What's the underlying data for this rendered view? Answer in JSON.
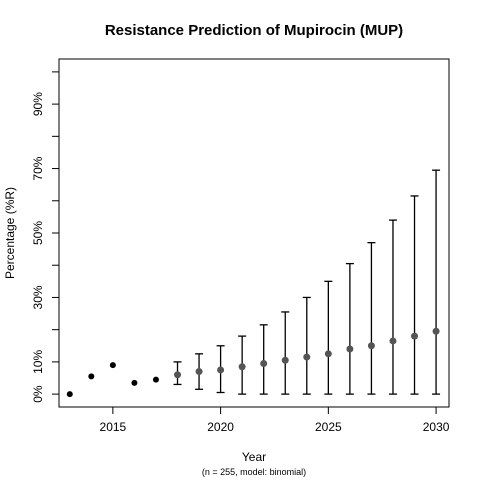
{
  "chart_data": {
    "type": "scatter",
    "title": "Resistance Prediction of Mupirocin (MUP)",
    "xlabel": "Year",
    "ylabel": "Percentage (%R)",
    "subtitle": "(n = 255, model: binomial)",
    "xlim": [
      2012.5,
      2030.6
    ],
    "ylim": [
      -4,
      104
    ],
    "x_ticks": [
      2015,
      2020,
      2025,
      2030
    ],
    "x_tick_labels": [
      "2015",
      "2020",
      "2025",
      "2030"
    ],
    "y_ticks": [
      0,
      10,
      30,
      50,
      70,
      90
    ],
    "y_tick_labels": [
      "0%",
      "10%",
      "30%",
      "50%",
      "70%",
      "90%"
    ],
    "y_minor_ticks": [
      20,
      40,
      60,
      80,
      100
    ],
    "grid": false,
    "series": [
      {
        "role": "observed",
        "color": "#000000",
        "points": [
          {
            "x": 2013,
            "y": 0
          },
          {
            "x": 2014,
            "y": 5.5
          },
          {
            "x": 2015,
            "y": 9
          },
          {
            "x": 2016,
            "y": 3.5
          },
          {
            "x": 2017,
            "y": 4.5
          }
        ]
      },
      {
        "role": "predicted",
        "color": "#555555",
        "points": [
          {
            "x": 2018,
            "y": 6,
            "lower": 3,
            "upper": 10
          },
          {
            "x": 2019,
            "y": 7,
            "lower": 1.5,
            "upper": 12.5
          },
          {
            "x": 2020,
            "y": 7.5,
            "lower": 0.5,
            "upper": 15
          },
          {
            "x": 2021,
            "y": 8.5,
            "lower": 0,
            "upper": 18
          },
          {
            "x": 2022,
            "y": 9.5,
            "lower": 0,
            "upper": 21.5
          },
          {
            "x": 2023,
            "y": 10.5,
            "lower": 0,
            "upper": 25.5
          },
          {
            "x": 2024,
            "y": 11.5,
            "lower": 0,
            "upper": 30
          },
          {
            "x": 2025,
            "y": 12.5,
            "lower": 0,
            "upper": 35
          },
          {
            "x": 2026,
            "y": 14,
            "lower": 0,
            "upper": 40.5
          },
          {
            "x": 2027,
            "y": 15,
            "lower": 0,
            "upper": 47
          },
          {
            "x": 2028,
            "y": 16.5,
            "lower": 0,
            "upper": 54
          },
          {
            "x": 2029,
            "y": 18,
            "lower": 0,
            "upper": 61.5
          },
          {
            "x": 2030,
            "y": 19.5,
            "lower": 0,
            "upper": 69.5
          }
        ]
      }
    ]
  }
}
